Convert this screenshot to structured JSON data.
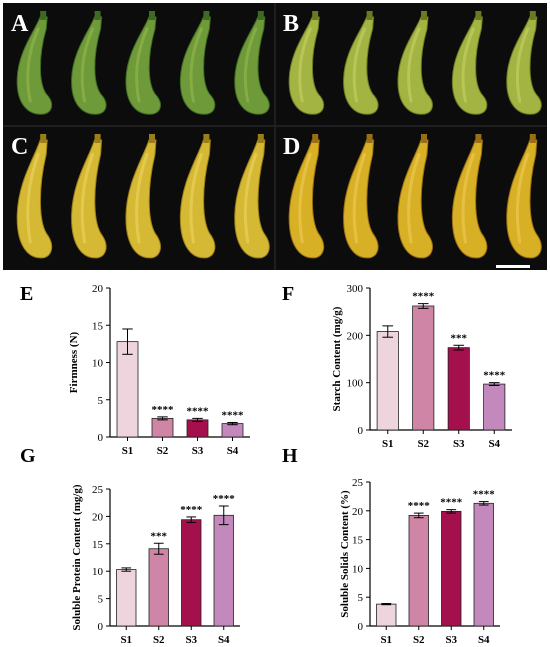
{
  "photo_panels": [
    {
      "label": "A",
      "peel": "#6f9a3a",
      "peel_light": "#8fb44a",
      "peel_dark": "#3f6a22"
    },
    {
      "label": "B",
      "peel": "#a3b443",
      "peel_light": "#c2cc5e",
      "peel_dark": "#6b7a22"
    },
    {
      "label": "C",
      "peel": "#d5b934",
      "peel_light": "#e8d25a",
      "peel_dark": "#9c7e18"
    },
    {
      "label": "D",
      "peel": "#d8b026",
      "peel_light": "#ecc84e",
      "peel_dark": "#9a6e12"
    }
  ],
  "colors": {
    "s1": "#eed4dd",
    "s2": "#cf86a6",
    "s3": "#a3104c",
    "s4": "#c389bd",
    "photo_bg": "#0c0c0c"
  },
  "chart_data": [
    {
      "panel": "E",
      "type": "bar",
      "categories": [
        "S1",
        "S2",
        "S3",
        "S4"
      ],
      "values": [
        12.8,
        2.5,
        2.3,
        1.8
      ],
      "errors": [
        1.7,
        0.2,
        0.2,
        0.15
      ],
      "significance": [
        "",
        "****",
        "****",
        "****"
      ],
      "ylabel": "Firmness (N)",
      "ylim": [
        0,
        20
      ],
      "yticks": [
        0,
        5,
        10,
        15,
        20
      ]
    },
    {
      "panel": "F",
      "type": "bar",
      "categories": [
        "S1",
        "S2",
        "S3",
        "S4"
      ],
      "values": [
        208,
        262,
        174,
        97
      ],
      "errors": [
        12,
        5,
        5,
        3
      ],
      "significance": [
        "",
        "****",
        "***",
        "****"
      ],
      "ylabel": "Starch Content (mg/g)",
      "ylim": [
        0,
        300
      ],
      "yticks": [
        0,
        100,
        200,
        300
      ]
    },
    {
      "panel": "G",
      "type": "bar",
      "categories": [
        "S1",
        "S2",
        "S3",
        "S4"
      ],
      "values": [
        10.3,
        14.1,
        19.4,
        20.2
      ],
      "errors": [
        0.3,
        1.0,
        0.5,
        1.7
      ],
      "significance": [
        "",
        "***",
        "****",
        "****"
      ],
      "ylabel": "Soluble Protein Content (mg/g)",
      "ylim": [
        0,
        25
      ],
      "yticks": [
        0,
        5,
        10,
        15,
        20,
        25
      ]
    },
    {
      "panel": "H",
      "type": "bar",
      "categories": [
        "S1",
        "S2",
        "S3",
        "S4"
      ],
      "values": [
        3.8,
        19.2,
        19.9,
        21.3
      ],
      "errors": [
        0.1,
        0.4,
        0.3,
        0.3
      ],
      "significance": [
        "",
        "****",
        "****",
        "****"
      ],
      "ylabel": "Soluble Solids Content (%)",
      "ylim": [
        0,
        25
      ],
      "yticks": [
        0,
        5,
        10,
        15,
        20,
        25
      ]
    }
  ]
}
